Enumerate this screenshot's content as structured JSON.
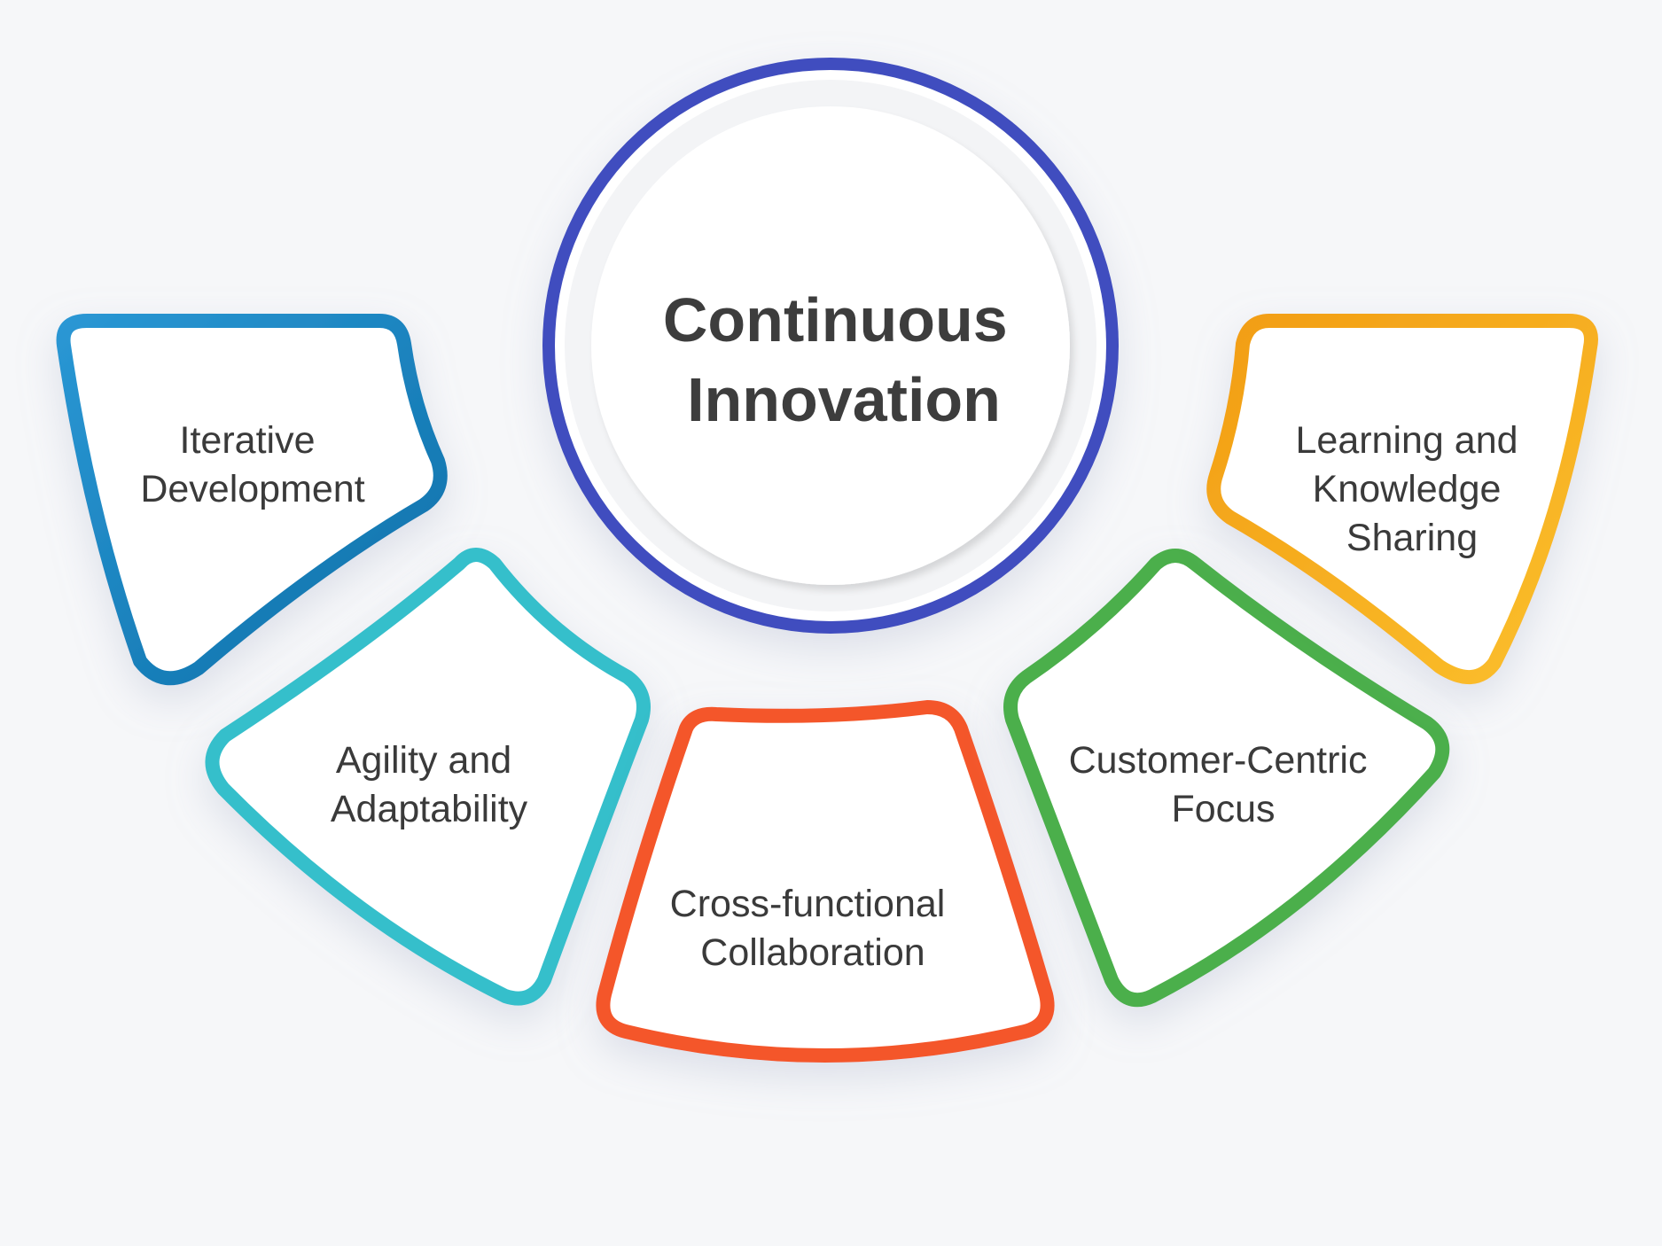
{
  "center": {
    "title_lines": [
      "Continuous",
      "Innovation"
    ],
    "ring_color": "#3f4ebf"
  },
  "segments": [
    {
      "id": "iterative-development",
      "lines": [
        "Iterative",
        "Development"
      ],
      "color_start": "#2a97d4",
      "color_end": "#0d6fa8"
    },
    {
      "id": "agility-adaptability",
      "lines": [
        "Agility and",
        "Adaptability"
      ],
      "color_start": "#36bfcb",
      "color_end": "#36bfcb"
    },
    {
      "id": "cross-functional-collaboration",
      "lines": [
        "Cross-functional",
        "Collaboration"
      ],
      "color_start": "#f4572b",
      "color_end": "#f4572b"
    },
    {
      "id": "customer-centric-focus",
      "lines": [
        "Customer-Centric",
        "Focus"
      ],
      "color_start": "#4caf4c",
      "color_end": "#4caf4c"
    },
    {
      "id": "learning-knowledge-sharing",
      "lines": [
        "Learning and",
        "Knowledge",
        "Sharing"
      ],
      "color_start": "#f29d14",
      "color_end": "#fbc02d"
    }
  ]
}
